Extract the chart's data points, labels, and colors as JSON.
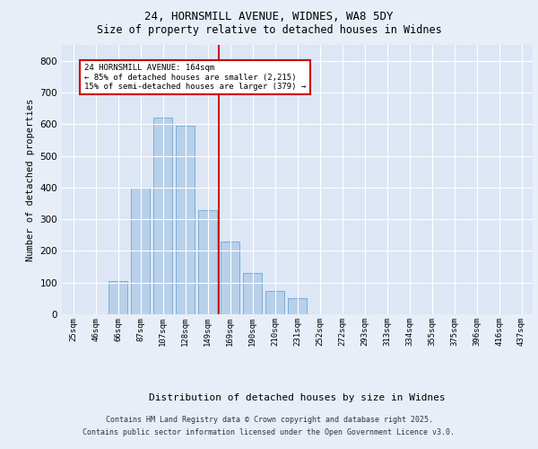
{
  "title1": "24, HORNSMILL AVENUE, WIDNES, WA8 5DY",
  "title2": "Size of property relative to detached houses in Widnes",
  "xlabel": "Distribution of detached houses by size in Widnes",
  "ylabel": "Number of detached properties",
  "bins": [
    "25sqm",
    "46sqm",
    "66sqm",
    "87sqm",
    "107sqm",
    "128sqm",
    "149sqm",
    "169sqm",
    "190sqm",
    "210sqm",
    "231sqm",
    "252sqm",
    "272sqm",
    "293sqm",
    "313sqm",
    "334sqm",
    "355sqm",
    "375sqm",
    "396sqm",
    "416sqm",
    "437sqm"
  ],
  "values": [
    0,
    0,
    105,
    400,
    620,
    595,
    330,
    230,
    130,
    75,
    50,
    0,
    0,
    0,
    0,
    0,
    0,
    0,
    0,
    0,
    0
  ],
  "bar_color": "#b8d0ea",
  "bar_edgecolor": "#7aaed4",
  "marker_bin_index": 7,
  "annotation_line1": "24 HORNSMILL AVENUE: 164sqm",
  "annotation_line2": "← 85% of detached houses are smaller (2,215)",
  "annotation_line3": "15% of semi-detached houses are larger (379) →",
  "red_color": "#cc0000",
  "footer1": "Contains HM Land Registry data © Crown copyright and database right 2025.",
  "footer2": "Contains public sector information licensed under the Open Government Licence v3.0.",
  "ylim": [
    0,
    850
  ],
  "yticks": [
    0,
    100,
    200,
    300,
    400,
    500,
    600,
    700,
    800
  ],
  "fig_bg_color": "#e8eef8",
  "plot_bg_color": "#dce6f5"
}
